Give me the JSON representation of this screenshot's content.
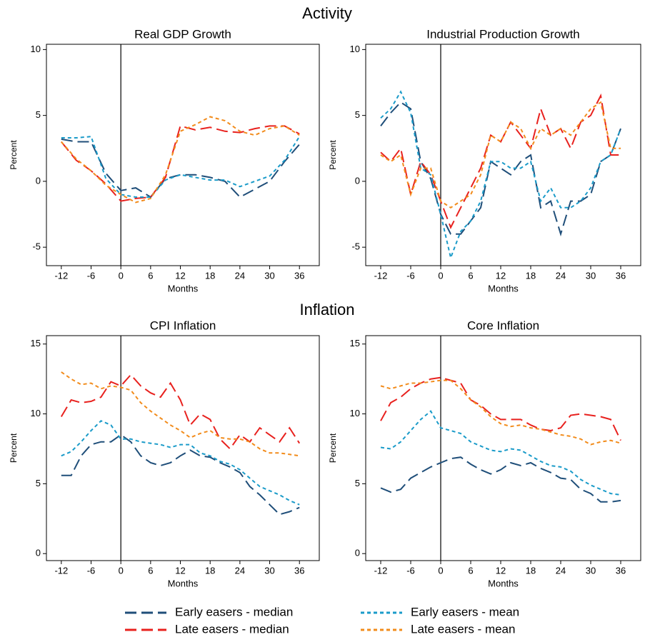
{
  "section_titles": [
    "Activity",
    "Inflation"
  ],
  "chart_data": [
    {
      "type": "line",
      "title": "Real GDP Growth",
      "xlabel": "Months",
      "ylabel": "Percent",
      "x": [
        -12,
        -9,
        -6,
        -3,
        0,
        3,
        6,
        9,
        12,
        15,
        18,
        21,
        24,
        27,
        30,
        33,
        36
      ],
      "xlim": [
        -15,
        40
      ],
      "xticks": [
        -12,
        -6,
        0,
        6,
        12,
        18,
        24,
        30,
        36
      ],
      "ylim": [
        -6.4,
        10.4
      ],
      "yticks": [
        -5,
        0,
        5,
        10
      ],
      "vline": 0,
      "series": [
        {
          "name": "Early easers - median",
          "color": "#1f4e79",
          "dash": "long",
          "values": [
            3.2,
            3.0,
            3.0,
            0.6,
            -0.7,
            -0.5,
            -1.2,
            0.2,
            0.5,
            0.5,
            0.3,
            0,
            -1.2,
            -0.6,
            0,
            1.5,
            2.8
          ]
        },
        {
          "name": "Late easers - median",
          "color": "#e8211e",
          "dash": "long",
          "values": [
            3.0,
            1.6,
            0.8,
            -0.2,
            -1.5,
            -1.3,
            -1.2,
            0.3,
            4.2,
            3.9,
            4.1,
            3.8,
            3.7,
            4.0,
            4.2,
            4.2,
            3.6
          ]
        },
        {
          "name": "Early easers - mean",
          "color": "#1a9bc9",
          "dash": "short",
          "values": [
            3.3,
            3.3,
            3.4,
            0.2,
            -1.0,
            -1.2,
            -1.2,
            0.1,
            0.5,
            0.3,
            0.1,
            0.1,
            -0.4,
            0,
            0.4,
            1.6,
            3.4
          ]
        },
        {
          "name": "Late easers - mean",
          "color": "#f28c1c",
          "dash": "short",
          "values": [
            3.0,
            1.7,
            0.8,
            -0.3,
            -1.0,
            -1.6,
            -1.3,
            0.5,
            3.8,
            4.3,
            4.9,
            4.6,
            3.8,
            3.5,
            4.0,
            4.2,
            3.5
          ]
        }
      ]
    },
    {
      "type": "line",
      "title": "Industrial Production Growth",
      "xlabel": "Months",
      "ylabel": "Percent",
      "x": [
        -12,
        -10,
        -8,
        -6,
        -4,
        -2,
        0,
        2,
        4,
        6,
        8,
        10,
        12,
        14,
        16,
        18,
        20,
        22,
        24,
        26,
        28,
        30,
        32,
        34,
        36
      ],
      "xlim": [
        -15,
        40
      ],
      "xticks": [
        -12,
        -6,
        0,
        6,
        12,
        18,
        24,
        30,
        36
      ],
      "ylim": [
        -6.4,
        10.4
      ],
      "yticks": [
        -5,
        0,
        5,
        10
      ],
      "vline": 0,
      "series": [
        {
          "name": "Early easers - median",
          "color": "#1f4e79",
          "dash": "long",
          "values": [
            4.2,
            5.2,
            6.0,
            5.5,
            1.5,
            0.2,
            -2.5,
            -4.0,
            -4.0,
            -3.0,
            -2.0,
            1.5,
            1.0,
            0.5,
            1.5,
            2.0,
            -2.0,
            -1.5,
            -4.0,
            -1.5,
            -1.5,
            -1.0,
            1.5,
            2.0,
            4.0
          ]
        },
        {
          "name": "Late easers - median",
          "color": "#e8211e",
          "dash": "long",
          "values": [
            2.2,
            1.5,
            2.5,
            -1.0,
            1.5,
            0.5,
            -1.5,
            -3.5,
            -2.0,
            -0.5,
            1.0,
            3.5,
            3.0,
            4.5,
            3.5,
            2.5,
            5.5,
            3.5,
            4.0,
            2.5,
            4.5,
            5.0,
            6.5,
            2.0,
            2.0
          ]
        },
        {
          "name": "Early easers - mean",
          "color": "#1a9bc9",
          "dash": "short",
          "values": [
            4.8,
            5.5,
            6.8,
            5.2,
            1.0,
            0.5,
            -2.5,
            -5.8,
            -3.8,
            -3.0,
            -1.5,
            1.5,
            1.5,
            1.0,
            1.0,
            1.5,
            -1.5,
            -0.5,
            -2.0,
            -2.0,
            -1.5,
            -0.5,
            1.5,
            2.0,
            4.0
          ]
        },
        {
          "name": "Late easers - mean",
          "color": "#f28c1c",
          "dash": "short",
          "values": [
            2.0,
            1.5,
            2.0,
            -1.0,
            1.0,
            1.0,
            -1.5,
            -2.0,
            -1.5,
            -1.0,
            0.5,
            3.5,
            3.0,
            4.5,
            4.0,
            2.5,
            4.0,
            3.5,
            4.0,
            3.5,
            4.5,
            5.5,
            6.0,
            2.5,
            2.5
          ]
        }
      ]
    },
    {
      "type": "line",
      "title": "CPI Inflation",
      "xlabel": "Months",
      "ylabel": "Percent",
      "x": [
        -12,
        -10,
        -8,
        -6,
        -4,
        -2,
        0,
        2,
        4,
        6,
        8,
        10,
        12,
        14,
        16,
        18,
        20,
        22,
        24,
        26,
        28,
        30,
        32,
        34,
        36
      ],
      "xlim": [
        -15,
        40
      ],
      "xticks": [
        -12,
        -6,
        0,
        6,
        12,
        18,
        24,
        30,
        36
      ],
      "ylim": [
        -0.5,
        15.6
      ],
      "yticks": [
        0,
        5,
        10,
        15
      ],
      "vline": 0,
      "series": [
        {
          "name": "Early easers - median",
          "color": "#1f4e79",
          "dash": "long",
          "values": [
            5.6,
            5.6,
            7.0,
            7.8,
            8.0,
            8.0,
            8.5,
            8.0,
            7.0,
            6.5,
            6.3,
            6.5,
            7.0,
            7.4,
            7.0,
            6.9,
            6.5,
            6.2,
            5.8,
            4.8,
            4.2,
            3.5,
            2.8,
            3.0,
            3.3
          ]
        },
        {
          "name": "Late easers - median",
          "color": "#e8211e",
          "dash": "long",
          "values": [
            9.8,
            11.0,
            10.8,
            10.9,
            11.2,
            12.3,
            12.0,
            12.8,
            12.0,
            11.5,
            11.2,
            12.2,
            11.0,
            9.2,
            10.0,
            9.6,
            8.2,
            7.5,
            8.5,
            8.0,
            9.0,
            8.5,
            8.0,
            9.0,
            7.9
          ]
        },
        {
          "name": "Early easers - mean",
          "color": "#1a9bc9",
          "dash": "short",
          "values": [
            7.0,
            7.3,
            8.0,
            8.8,
            9.5,
            9.2,
            8.2,
            8.2,
            8.0,
            7.9,
            7.8,
            7.6,
            7.8,
            7.8,
            7.2,
            7.0,
            6.6,
            6.4,
            6.0,
            5.4,
            4.8,
            4.5,
            4.2,
            3.8,
            3.5
          ]
        },
        {
          "name": "Late easers - mean",
          "color": "#f28c1c",
          "dash": "short",
          "values": [
            13.0,
            12.5,
            12.1,
            12.2,
            11.8,
            12.0,
            11.9,
            11.7,
            10.8,
            10.2,
            9.7,
            9.2,
            8.8,
            8.3,
            8.6,
            8.8,
            8.3,
            8.2,
            8.2,
            8.0,
            7.5,
            7.2,
            7.2,
            7.1,
            7.0
          ]
        }
      ]
    },
    {
      "type": "line",
      "title": "Core Inflation",
      "xlabel": "Months",
      "ylabel": "Percent",
      "x": [
        -12,
        -10,
        -8,
        -6,
        -4,
        -2,
        0,
        2,
        4,
        6,
        8,
        10,
        12,
        14,
        16,
        18,
        20,
        22,
        24,
        26,
        28,
        30,
        32,
        34,
        36
      ],
      "xlim": [
        -15,
        40
      ],
      "xticks": [
        -12,
        -6,
        0,
        6,
        12,
        18,
        24,
        30,
        36
      ],
      "ylim": [
        -0.5,
        15.6
      ],
      "yticks": [
        0,
        5,
        10,
        15
      ],
      "vline": 0,
      "series": [
        {
          "name": "Early easers - median",
          "color": "#1f4e79",
          "dash": "long",
          "values": [
            4.7,
            4.4,
            4.6,
            5.4,
            5.8,
            6.2,
            6.5,
            6.8,
            6.9,
            6.4,
            6.0,
            5.7,
            6.0,
            6.5,
            6.3,
            6.5,
            6.1,
            5.8,
            5.4,
            5.3,
            4.6,
            4.3,
            3.7,
            3.7,
            3.8
          ]
        },
        {
          "name": "Late easers - median",
          "color": "#e8211e",
          "dash": "long",
          "values": [
            9.5,
            10.8,
            11.2,
            11.8,
            12.2,
            12.5,
            12.6,
            12.4,
            12.2,
            11.0,
            10.6,
            10.0,
            9.6,
            9.6,
            9.6,
            9.2,
            8.9,
            8.8,
            9.0,
            9.9,
            10.0,
            9.9,
            9.8,
            9.6,
            8.1
          ]
        },
        {
          "name": "Early easers - mean",
          "color": "#1a9bc9",
          "dash": "short",
          "values": [
            7.6,
            7.5,
            8.0,
            8.8,
            9.6,
            10.2,
            9.0,
            8.8,
            8.6,
            8.0,
            7.7,
            7.4,
            7.3,
            7.5,
            7.4,
            7.0,
            6.6,
            6.3,
            6.2,
            5.9,
            5.3,
            4.9,
            4.6,
            4.3,
            4.2
          ]
        },
        {
          "name": "Late easers - mean",
          "color": "#f28c1c",
          "dash": "short",
          "values": [
            12.0,
            11.8,
            12.0,
            12.2,
            12.2,
            12.3,
            12.4,
            12.4,
            11.8,
            11.0,
            10.5,
            9.8,
            9.3,
            9.1,
            9.2,
            9.0,
            8.9,
            8.7,
            8.5,
            8.4,
            8.2,
            7.8,
            8.0,
            8.1,
            7.9
          ]
        }
      ]
    }
  ]
}
